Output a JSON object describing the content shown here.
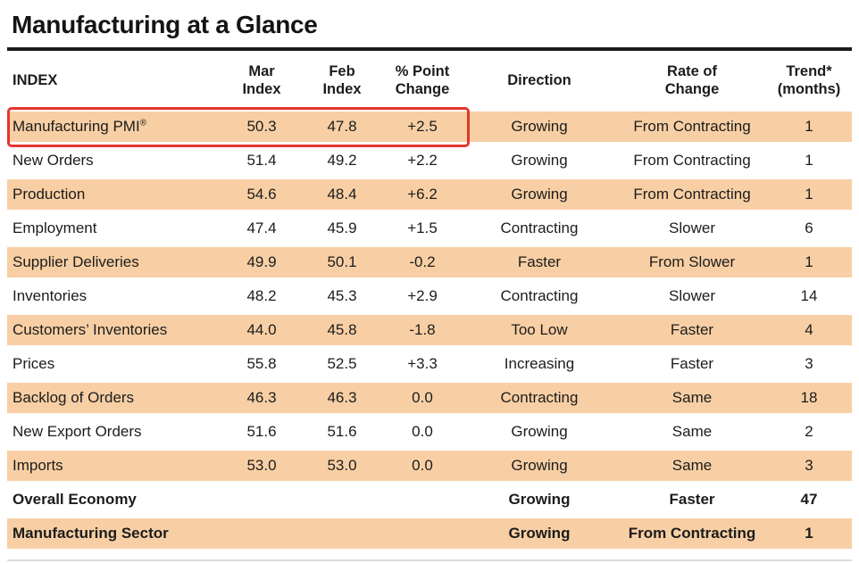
{
  "title": "Manufacturing at a Glance",
  "colors": {
    "row_shade": "#f8cfa4",
    "highlight_border": "#e2372b",
    "rule": "#1b1b1b"
  },
  "columns": [
    {
      "line1": "INDEX",
      "line2": ""
    },
    {
      "line1": "Mar",
      "line2": "Index"
    },
    {
      "line1": "Feb",
      "line2": "Index"
    },
    {
      "line1": "% Point",
      "line2": "Change"
    },
    {
      "line1": "Direction",
      "line2": ""
    },
    {
      "line1": "Rate of",
      "line2": "Change"
    },
    {
      "line1": "Trend*",
      "line2": "(months)"
    }
  ],
  "rows": [
    {
      "index": "Manufacturing PMI",
      "index_suffix": "®",
      "mar": "50.3",
      "feb": "47.8",
      "change": "+2.5",
      "direction": "Growing",
      "rate": "From Contracting",
      "trend": "1"
    },
    {
      "index": "New Orders",
      "mar": "51.4",
      "feb": "49.2",
      "change": "+2.2",
      "direction": "Growing",
      "rate": "From Contracting",
      "trend": "1"
    },
    {
      "index": "Production",
      "mar": "54.6",
      "feb": "48.4",
      "change": "+6.2",
      "direction": "Growing",
      "rate": "From Contracting",
      "trend": "1"
    },
    {
      "index": "Employment",
      "mar": "47.4",
      "feb": "45.9",
      "change": "+1.5",
      "direction": "Contracting",
      "rate": "Slower",
      "trend": "6"
    },
    {
      "index": "Supplier Deliveries",
      "mar": "49.9",
      "feb": "50.1",
      "change": "-0.2",
      "direction": "Faster",
      "rate": "From Slower",
      "trend": "1"
    },
    {
      "index": "Inventories",
      "mar": "48.2",
      "feb": "45.3",
      "change": "+2.9",
      "direction": "Contracting",
      "rate": "Slower",
      "trend": "14"
    },
    {
      "index": "Customers’ Inventories",
      "mar": "44.0",
      "feb": "45.8",
      "change": "-1.8",
      "direction": "Too Low",
      "rate": "Faster",
      "trend": "4"
    },
    {
      "index": "Prices",
      "mar": "55.8",
      "feb": "52.5",
      "change": "+3.3",
      "direction": "Increasing",
      "rate": "Faster",
      "trend": "3"
    },
    {
      "index": "Backlog of Orders",
      "mar": "46.3",
      "feb": "46.3",
      "change": "0.0",
      "direction": "Contracting",
      "rate": "Same",
      "trend": "18"
    },
    {
      "index": "New Export Orders",
      "mar": "51.6",
      "feb": "51.6",
      "change": "0.0",
      "direction": "Growing",
      "rate": "Same",
      "trend": "2"
    },
    {
      "index": "Imports",
      "mar": "53.0",
      "feb": "53.0",
      "change": "0.0",
      "direction": "Growing",
      "rate": "Same",
      "trend": "3"
    },
    {
      "index": "Overall Economy",
      "mar": "",
      "feb": "",
      "change": "",
      "direction": "Growing",
      "rate": "Faster",
      "trend": "47"
    },
    {
      "index": "Manufacturing Sector",
      "mar": "",
      "feb": "",
      "change": "",
      "direction": "Growing",
      "rate": "From Contracting",
      "trend": "1"
    }
  ]
}
